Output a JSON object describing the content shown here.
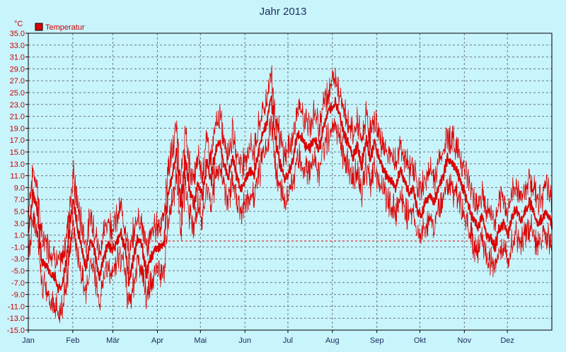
{
  "chart_data": {
    "type": "line",
    "title": "Jahr 2013",
    "yunit": "°C",
    "ylim": [
      -15.0,
      35.0
    ],
    "yticks": [
      "35.0",
      "33.0",
      "31.0",
      "29.0",
      "27.0",
      "25.0",
      "23.0",
      "21.0",
      "19.0",
      "17.0",
      "15.0",
      "13.0",
      "11.0",
      "9.0",
      "7.0",
      "5.0",
      "3.0",
      "1.0",
      "-1.0",
      "-3.0",
      "-5.0",
      "-7.0",
      "-9.0",
      "-11.0",
      "-13.0",
      "-15.0"
    ],
    "xlim": [
      1,
      366
    ],
    "months": [
      {
        "label": "Jan",
        "day": 1
      },
      {
        "label": "Feb",
        "day": 32
      },
      {
        "label": "Mär",
        "day": 60
      },
      {
        "label": "Apr",
        "day": 91
      },
      {
        "label": "Mai",
        "day": 121
      },
      {
        "label": "Jun",
        "day": 152
      },
      {
        "label": "Jul",
        "day": 182
      },
      {
        "label": "Aug",
        "day": 213
      },
      {
        "label": "Sep",
        "day": 244
      },
      {
        "label": "Okt",
        "day": 274
      },
      {
        "label": "Nov",
        "day": 305
      },
      {
        "label": "Dez",
        "day": 335
      }
    ],
    "grid": true,
    "reference_line": 0,
    "legend": {
      "placement": "top-left",
      "label": "Temperatur",
      "color": "#dd0000"
    },
    "series": [
      {
        "name": "Temperatur",
        "color": "#dd0000",
        "anchors": [
          [
            1,
            2.0
          ],
          [
            4,
            8.0
          ],
          [
            7,
            5.0
          ],
          [
            10,
            -3.5
          ],
          [
            13,
            -4.0
          ],
          [
            16,
            -5.5
          ],
          [
            19,
            -6.0
          ],
          [
            21,
            -8.0
          ],
          [
            24,
            -7.5
          ],
          [
            27,
            -3.5
          ],
          [
            30,
            3.5
          ],
          [
            32,
            7.0
          ],
          [
            35,
            2.0
          ],
          [
            38,
            -1.5
          ],
          [
            41,
            -4.5
          ],
          [
            44,
            0.5
          ],
          [
            47,
            -2.0
          ],
          [
            50,
            -6.0
          ],
          [
            53,
            -3.0
          ],
          [
            56,
            -0.5
          ],
          [
            59,
            -1.5
          ],
          [
            62,
            -0.5
          ],
          [
            65,
            1.5
          ],
          [
            68,
            -1.0
          ],
          [
            71,
            -7.0
          ],
          [
            74,
            -3.0
          ],
          [
            77,
            0.5
          ],
          [
            80,
            -1.0
          ],
          [
            83,
            -5.5
          ],
          [
            86,
            -3.0
          ],
          [
            89,
            -1.5
          ],
          [
            92,
            -1.0
          ],
          [
            95,
            -0.5
          ],
          [
            98,
            8.0
          ],
          [
            101,
            11.0
          ],
          [
            104,
            15.0
          ],
          [
            107,
            6.0
          ],
          [
            110,
            14.0
          ],
          [
            113,
            9.0
          ],
          [
            116,
            6.0
          ],
          [
            119,
            10.0
          ],
          [
            122,
            7.5
          ],
          [
            125,
            13.0
          ],
          [
            128,
            10.0
          ],
          [
            131,
            15.0
          ],
          [
            134,
            17.0
          ],
          [
            137,
            13.0
          ],
          [
            140,
            11.0
          ],
          [
            143,
            14.0
          ],
          [
            146,
            11.0
          ],
          [
            149,
            9.0
          ],
          [
            152,
            10.0
          ],
          [
            155,
            12.0
          ],
          [
            158,
            11.0
          ],
          [
            161,
            15.0
          ],
          [
            164,
            18.0
          ],
          [
            167,
            20.0
          ],
          [
            170,
            24.5
          ],
          [
            173,
            17.0
          ],
          [
            176,
            13.0
          ],
          [
            179,
            10.5
          ],
          [
            182,
            11.5
          ],
          [
            185,
            13.5
          ],
          [
            188,
            18.0
          ],
          [
            191,
            17.5
          ],
          [
            194,
            16.0
          ],
          [
            197,
            15.5
          ],
          [
            200,
            17.5
          ],
          [
            203,
            15.0
          ],
          [
            206,
            19.0
          ],
          [
            209,
            21.0
          ],
          [
            212,
            22.5
          ],
          [
            215,
            23.5
          ],
          [
            218,
            21.0
          ],
          [
            221,
            18.0
          ],
          [
            224,
            16.0
          ],
          [
            227,
            14.0
          ],
          [
            230,
            16.0
          ],
          [
            233,
            12.5
          ],
          [
            236,
            17.0
          ],
          [
            239,
            14.0
          ],
          [
            242,
            16.5
          ],
          [
            245,
            14.0
          ],
          [
            248,
            12.0
          ],
          [
            251,
            10.5
          ],
          [
            254,
            10.0
          ],
          [
            257,
            9.0
          ],
          [
            260,
            12.0
          ],
          [
            263,
            10.0
          ],
          [
            266,
            8.0
          ],
          [
            269,
            9.0
          ],
          [
            272,
            5.0
          ],
          [
            275,
            4.5
          ],
          [
            278,
            7.0
          ],
          [
            281,
            7.5
          ],
          [
            284,
            6.5
          ],
          [
            287,
            9.5
          ],
          [
            290,
            11.0
          ],
          [
            293,
            14.0
          ],
          [
            296,
            13.0
          ],
          [
            299,
            12.0
          ],
          [
            302,
            10.0
          ],
          [
            305,
            8.0
          ],
          [
            308,
            5.5
          ],
          [
            311,
            3.5
          ],
          [
            314,
            2.5
          ],
          [
            317,
            4.0
          ],
          [
            320,
            1.0
          ],
          [
            323,
            0.5
          ],
          [
            326,
            -1.0
          ],
          [
            329,
            2.0
          ],
          [
            332,
            3.0
          ],
          [
            335,
            1.0
          ],
          [
            338,
            4.0
          ],
          [
            341,
            5.5
          ],
          [
            344,
            3.5
          ],
          [
            347,
            5.0
          ],
          [
            350,
            6.5
          ],
          [
            353,
            5.0
          ],
          [
            356,
            3.0
          ],
          [
            359,
            4.0
          ],
          [
            362,
            5.0
          ],
          [
            366,
            2.5
          ]
        ]
      }
    ]
  }
}
